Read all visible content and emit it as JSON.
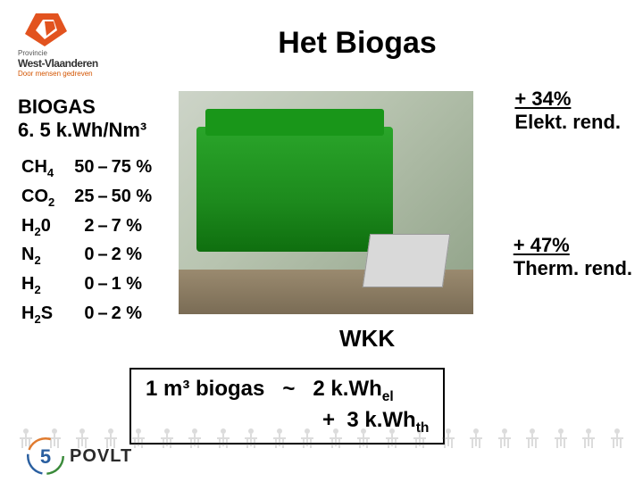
{
  "logo": {
    "line1": "Provincie",
    "line2": "West-Vlaanderen",
    "line3": "Door mensen gedreven",
    "colors": {
      "orange": "#e2531f",
      "dark": "#333333"
    }
  },
  "title": "Het Biogas",
  "biogas_header": {
    "line1": "BIOGAS",
    "line2": "6. 5 k.Wh/Nm³"
  },
  "composition": {
    "rows": [
      {
        "formula_base": "CH",
        "formula_sub": "4",
        "low": "50",
        "dash": "–",
        "high": "75 %"
      },
      {
        "formula_base": "CO",
        "formula_sub": "2",
        "low": "25",
        "dash": "–",
        "high": "50 %"
      },
      {
        "formula_base": "H",
        "formula_sub": "2",
        "formula_tail": "0",
        "low": "2",
        "dash": "–",
        "high": "7 %"
      },
      {
        "formula_base": "N",
        "formula_sub": "2",
        "low": "0",
        "dash": "–",
        "high": "2 %"
      },
      {
        "formula_base": "H",
        "formula_sub": "2",
        "low": "0",
        "dash": "–",
        "high": "1 %"
      },
      {
        "formula_base": "H",
        "formula_sub": "2",
        "formula_tail": "S",
        "low": "0",
        "dash": "–",
        "high": "2 %"
      }
    ]
  },
  "stats": {
    "elek": {
      "pct": "+ 34%",
      "label": "Elekt. rend."
    },
    "therm": {
      "pct": "+ 47%",
      "label": "Therm. rend."
    }
  },
  "wkk_label": "WKK",
  "equation": {
    "line1_left": "1 m³ biogas",
    "tilde": "~",
    "r1_val": "2 k.Wh",
    "r1_sub": "el",
    "plus": "+",
    "r2_val": "3 k.Wh",
    "r2_sub": "th"
  },
  "footer_logo": {
    "text": "POVLT",
    "five": "5",
    "colors": {
      "green": "#3a8a3a",
      "blue": "#2a5fa0",
      "orange": "#e07b2f"
    }
  },
  "photo_colors": {
    "engine_green": "#1d8a1d",
    "room_bg": "#b8c4b0",
    "plate": "#d9d9d9",
    "floor": "#7a6c55"
  }
}
